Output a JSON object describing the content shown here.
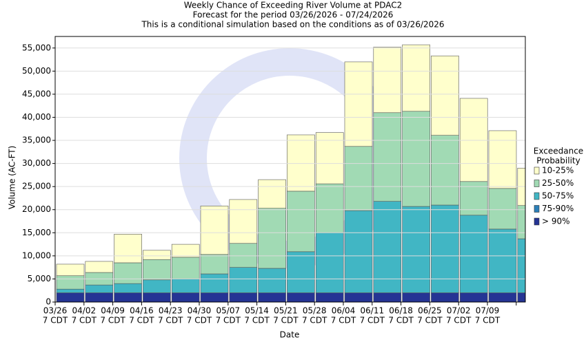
{
  "chart_data": {
    "type": "stacked_bar",
    "title": [
      "Weekly Chance of Exceeding River Volume at PDAC2",
      "Forecast for the period 03/26/2026 - 07/24/2026",
      "This is a conditional simulation based on the conditions as of 03/26/2026"
    ],
    "x_label": "Date",
    "y_label": "Volume (AC-FT)",
    "tick_sublabel": "7 CDT",
    "legend_title": [
      "Exceedance",
      "Probability"
    ],
    "categories": [
      "03/26",
      "04/02",
      "04/09",
      "04/16",
      "04/23",
      "04/30",
      "05/07",
      "05/14",
      "05/21",
      "05/28",
      "06/04",
      "06/11",
      "06/18",
      "06/25",
      "07/02",
      "07/09",
      null
    ],
    "series": [
      {
        "name": "> 90%",
        "color": "#253494",
        "values": [
          2000,
          2000,
          2000,
          2000,
          2000,
          2000,
          2000,
          2000,
          2000,
          2000,
          2000,
          2000,
          2000,
          2000,
          2000,
          2000,
          2000
        ]
      },
      {
        "name": "75-90%",
        "color": "#2c7fb8",
        "values": [
          0,
          0,
          0,
          0,
          0,
          0,
          0,
          0,
          0,
          0,
          0,
          0,
          0,
          0,
          0,
          0,
          0
        ]
      },
      {
        "name": "50-75%",
        "color": "#41b6c4",
        "values": [
          800,
          1700,
          2000,
          2800,
          3000,
          4100,
          5500,
          5300,
          8900,
          13000,
          17800,
          19800,
          18700,
          19000,
          16800,
          13800,
          11700
        ]
      },
      {
        "name": "25-50%",
        "color": "#a1dab4",
        "values": [
          2900,
          2700,
          4500,
          4400,
          4700,
          4200,
          5200,
          13000,
          13100,
          10600,
          13900,
          19200,
          20600,
          15100,
          7300,
          8800,
          7200
        ]
      },
      {
        "name": "10-25%",
        "color": "#ffffcc",
        "values": [
          2500,
          2400,
          6200,
          2000,
          2800,
          10500,
          9500,
          6200,
          12200,
          11100,
          18300,
          14200,
          14400,
          17200,
          18000,
          12500,
          8100
        ]
      }
    ],
    "ylim": [
      0,
      57500
    ],
    "yticks": [
      0,
      {
        "value": 5000,
        "label": "5,000"
      },
      {
        "value": 10000,
        "label": "10,000"
      },
      {
        "value": 15000,
        "label": "15,000"
      },
      {
        "value": 20000,
        "label": "20,000"
      },
      {
        "value": 25000,
        "label": "25,000"
      },
      {
        "value": 30000,
        "label": "30,000"
      },
      {
        "value": 35000,
        "label": "35,000"
      },
      {
        "value": 40000,
        "label": "40,000"
      },
      {
        "value": 45000,
        "label": "45,000"
      },
      {
        "value": 50000,
        "label": "50,000"
      },
      {
        "value": 55000,
        "label": "55,000"
      }
    ],
    "grid": true
  }
}
